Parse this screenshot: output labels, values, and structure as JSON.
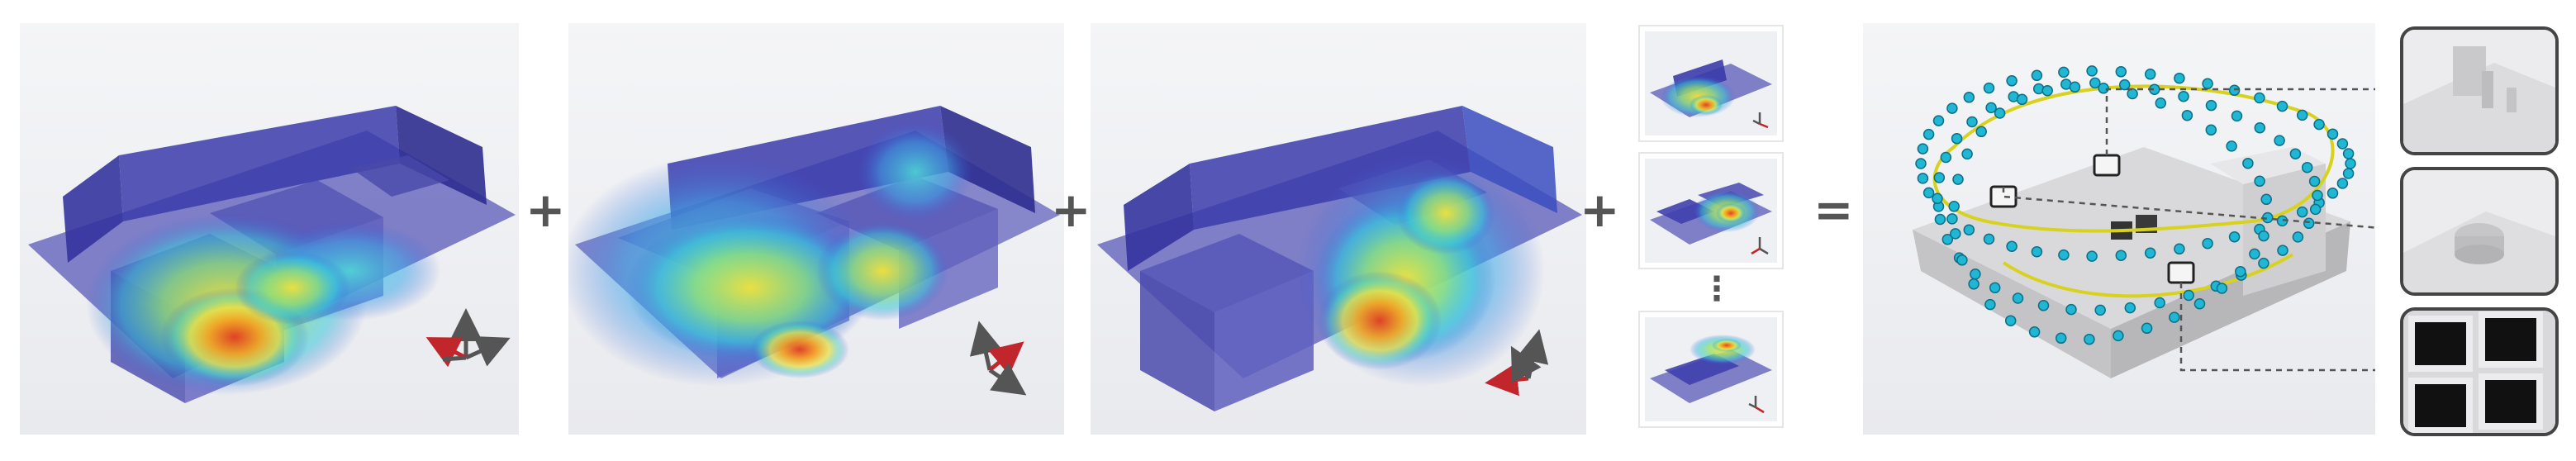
{
  "operators": {
    "plus_1": "+",
    "plus_2": "+",
    "plus_3": "+",
    "ellipsis": "⋮",
    "equals": "="
  },
  "colors": {
    "building_blue": "#3a3aa8",
    "axis_dark": "#555555",
    "axis_red": "#c0262b",
    "path_yellow": "#d8d21e",
    "camera_cyan": "#1fb7d4"
  },
  "icons": [
    "axis-triad-icon",
    "ellipsis-icon"
  ],
  "panels": [
    "heatmap-view-1",
    "heatmap-view-2",
    "heatmap-view-3",
    "heatmap-thumbnails",
    "reconstruction-result",
    "detail-crops"
  ]
}
